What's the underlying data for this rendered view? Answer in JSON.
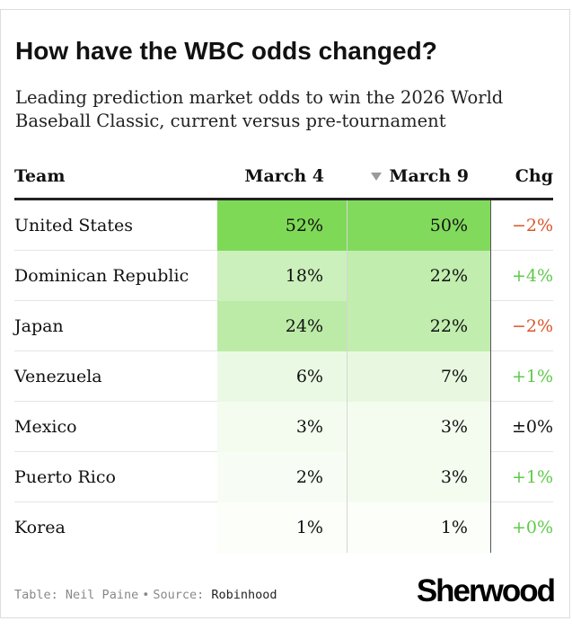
{
  "header": {
    "title": "How have the WBC odds changed?",
    "subtitle": "Leading prediction market odds to win the 2026 World Baseball Classic, current versus pre-tournament"
  },
  "table": {
    "columns": {
      "team": "Team",
      "march4": "March 4",
      "march9": "March 9",
      "change": "Chg",
      "sort_icon": "sort-descending-icon"
    },
    "rows": [
      {
        "team": "United States",
        "march4": "52%",
        "march9": "50%",
        "change": "−2%"
      },
      {
        "team": "Dominican Republic",
        "march4": "18%",
        "march9": "22%",
        "change": "+4%"
      },
      {
        "team": "Japan",
        "march4": "24%",
        "march9": "22%",
        "change": "−2%"
      },
      {
        "team": "Venezuela",
        "march4": "6%",
        "march9": "7%",
        "change": "+1%"
      },
      {
        "team": "Mexico",
        "march4": "3%",
        "march9": "3%",
        "change": "±0%"
      },
      {
        "team": "Puerto Rico",
        "march4": "2%",
        "march9": "3%",
        "change": "+1%"
      },
      {
        "team": "Korea",
        "march4": "1%",
        "march9": "1%",
        "change": "+0%"
      }
    ]
  },
  "chart_data": {
    "type": "table",
    "title": "How have the WBC odds changed?",
    "subtitle": "Leading prediction market odds to win the 2026 World Baseball Classic, current versus pre-tournament",
    "columns": [
      "Team",
      "March 4",
      "March 9",
      "Chg"
    ],
    "categories": [
      "United States",
      "Dominican Republic",
      "Japan",
      "Venezuela",
      "Mexico",
      "Puerto Rico",
      "Korea"
    ],
    "series": [
      {
        "name": "March 4",
        "values": [
          52,
          18,
          24,
          6,
          3,
          2,
          1
        ]
      },
      {
        "name": "March 9",
        "values": [
          50,
          22,
          22,
          7,
          3,
          3,
          1
        ]
      },
      {
        "name": "Chg",
        "values": [
          -2,
          4,
          -2,
          1,
          0,
          1,
          0
        ]
      }
    ],
    "units": "%",
    "sorted_by": "March 9",
    "heat_scale": {
      "low": "#ffffff",
      "high": "#7ed957"
    }
  },
  "colors": {
    "heat_high": "#7ed957",
    "heat_low": "#ffffff",
    "negative": "#d9572b",
    "positive": "#5fc94b"
  },
  "footer": {
    "credit_label": "Table:",
    "credit_name": "Neil Paine",
    "source_label": "Source:",
    "source_name": "Robinhood",
    "brand": "Sherwood"
  }
}
